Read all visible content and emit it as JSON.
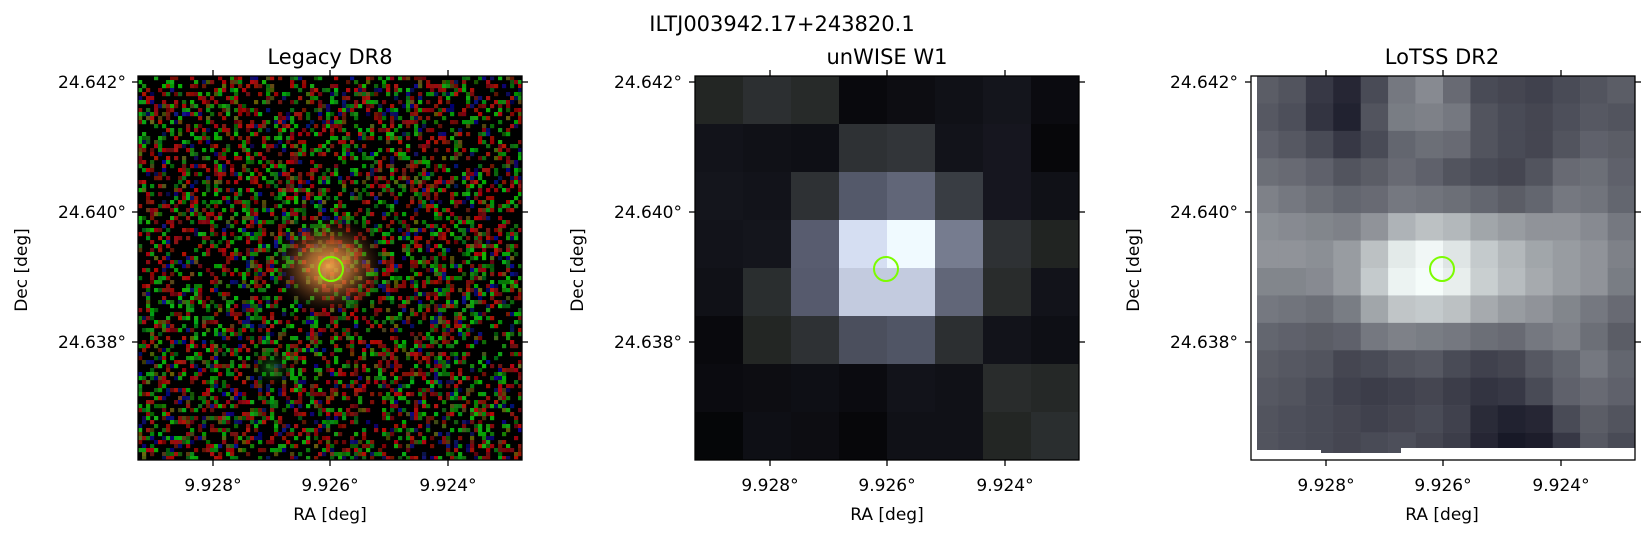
{
  "figure": {
    "title": "ILTJ003942.17+243820.1"
  },
  "panels": [
    {
      "title": "Legacy DR8",
      "image": "optical rgb cutout",
      "xlabel": "RA [deg]",
      "ylabel": "Dec [deg]",
      "xticks": [
        "9.928°",
        "9.926°",
        "9.924°"
      ],
      "yticks": [
        "24.642°",
        "24.640°",
        "24.638°"
      ]
    },
    {
      "title": "unWISE W1",
      "image": "infrared grayscale cutout",
      "xlabel": "RA [deg]",
      "ylabel": "Dec [deg]",
      "xticks": [
        "9.928°",
        "9.926°",
        "9.924°"
      ],
      "yticks": [
        "24.642°",
        "24.640°",
        "24.638°"
      ]
    },
    {
      "title": "LoTSS DR2",
      "image": "radio bone-colormap cutout",
      "xlabel": "RA [deg]",
      "ylabel": "Dec [deg]",
      "xticks": [
        "9.928°",
        "9.926°",
        "9.924°"
      ],
      "yticks": [
        "24.642°",
        "24.640°",
        "24.638°"
      ]
    }
  ],
  "colors": {
    "marker": "#7cfc00",
    "axes": "#000000"
  },
  "marker_icon": "circle-marker"
}
